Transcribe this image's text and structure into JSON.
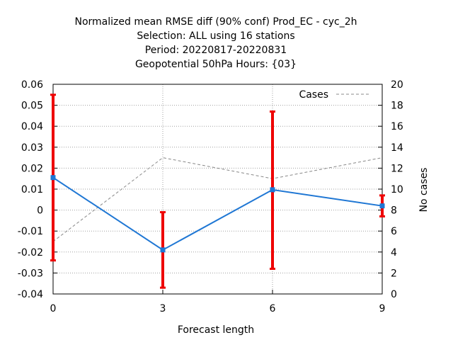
{
  "chart_data": {
    "type": "line",
    "title_lines": [
      "Normalized mean RMSE diff (90% conf) Prod_EC - cyc_2h",
      "Selection: ALL using    16 stations",
      "Period: 20220817-20220831",
      "Geopotential 50hPa   Hours: {03}"
    ],
    "xlabel": "Forecast length",
    "ylabel": "",
    "y2label": "No cases",
    "x_ticks": [
      "0",
      "3",
      "6",
      "9"
    ],
    "y_ticks": [
      "0.06",
      "0.05",
      "0.04",
      "0.03",
      "0.02",
      "0.01",
      "0",
      "-0.01",
      "-0.02",
      "-0.03",
      "-0.04"
    ],
    "y2_ticks": [
      "20",
      "18",
      "16",
      "14",
      "12",
      "10",
      "8",
      "6",
      "4",
      "2",
      "0"
    ],
    "xlim": [
      0,
      9
    ],
    "ylim": [
      -0.04,
      0.06
    ],
    "y2lim": [
      0,
      20
    ],
    "grid": true,
    "legend_position": "top-right",
    "series": [
      {
        "name": "",
        "color": "#1f77d4",
        "x": [
          0,
          3,
          6,
          9
        ],
        "y": [
          0.0155,
          -0.019,
          0.0097,
          0.002
        ],
        "err_low": [
          -0.024,
          -0.037,
          -0.028,
          -0.003
        ],
        "err_high": [
          0.055,
          -0.001,
          0.047,
          0.007
        ],
        "err_color": "#ee0000"
      },
      {
        "name": "Cases",
        "color": "#888888",
        "axis": "y2",
        "dashed": true,
        "x": [
          0,
          3,
          6,
          9
        ],
        "y": [
          5,
          13,
          11,
          13
        ]
      }
    ]
  }
}
